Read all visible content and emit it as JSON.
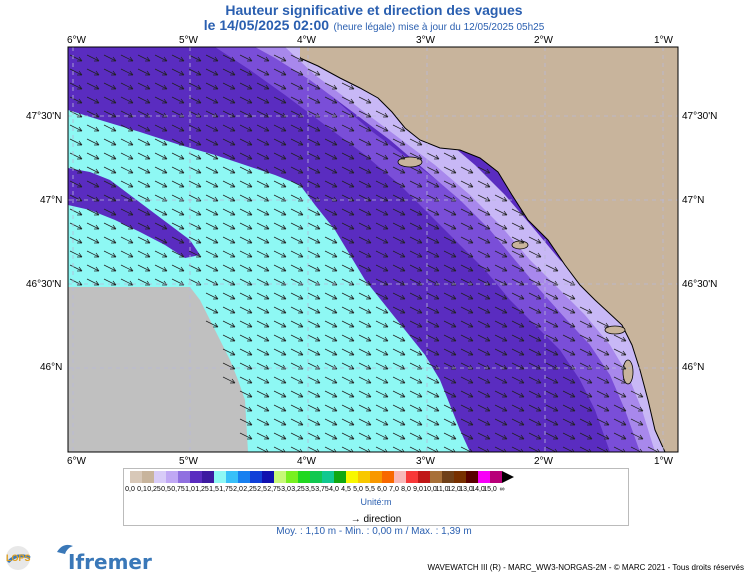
{
  "header": {
    "title": "Hauteur significative et direction des vagues",
    "date": "le 14/05/2025 02:00",
    "subtitle": "(heure légale) mise à jour du 12/05/2025 05h25"
  },
  "axes": {
    "lon_labels": [
      "6°W",
      "5°W",
      "4°W",
      "3°W",
      "2°W",
      "1°W"
    ],
    "lat_labels": [
      "47°30'N",
      "47°N",
      "46°30'N",
      "46°N"
    ]
  },
  "colors": {
    "land": "#c8b49c",
    "nodata": "#c0c0c0",
    "low_sea": "#8ef8f4",
    "band_1_25": "#5a2cc0",
    "band_1_0": "#7a4ed8",
    "band_0_75": "#a888ec",
    "band_0_5": "#c8b8f6",
    "coast_line": "#000000",
    "grid": "#b8b8d8"
  },
  "legend": {
    "labels": [
      "0,0",
      "0,1",
      "0,25",
      "0,5",
      "0,75",
      "1,0",
      "1,25",
      "1,5",
      "1,75",
      "2,0",
      "2,25",
      "2,5",
      "2,75",
      "3,0",
      "3,25",
      "3,5",
      "3,75",
      "4,0",
      "4,5",
      "5,0",
      "5,5",
      "6,0",
      "7,0",
      "8,0",
      "9,0",
      "10,0",
      "11,0",
      "12,0",
      "13,0",
      "14,0",
      "15,0",
      "∞"
    ],
    "colors": [
      "#d8c8b8",
      "#c8b49c",
      "#d8ccf8",
      "#c0a8f4",
      "#9070e0",
      "#5a2cc0",
      "#3c1aa0",
      "#8ef8f4",
      "#38c0f8",
      "#1880f0",
      "#1040d8",
      "#1010b0",
      "#c8f878",
      "#78f020",
      "#20d820",
      "#10c850",
      "#10c890",
      "#10a810",
      "#f8f800",
      "#f8c800",
      "#f89800",
      "#f86800",
      "#f8b8b8",
      "#f83838",
      "#c01818",
      "#a87038",
      "#704018",
      "#783000",
      "#580000",
      "#f800f8",
      "#b80078"
    ],
    "unit": "Unité:m",
    "direction": "direction"
  },
  "stats": "Moy. : 1,10 m   -   Min. : 0,00 m / Max. : 1,39 m",
  "footer": "WAVEWATCH III (R) - MARC_WW3-NORGAS-2M - © MARC 2021 - Tous droits réservés",
  "logos": {
    "lops": "LOPS",
    "ifremer": "Ifremer"
  }
}
